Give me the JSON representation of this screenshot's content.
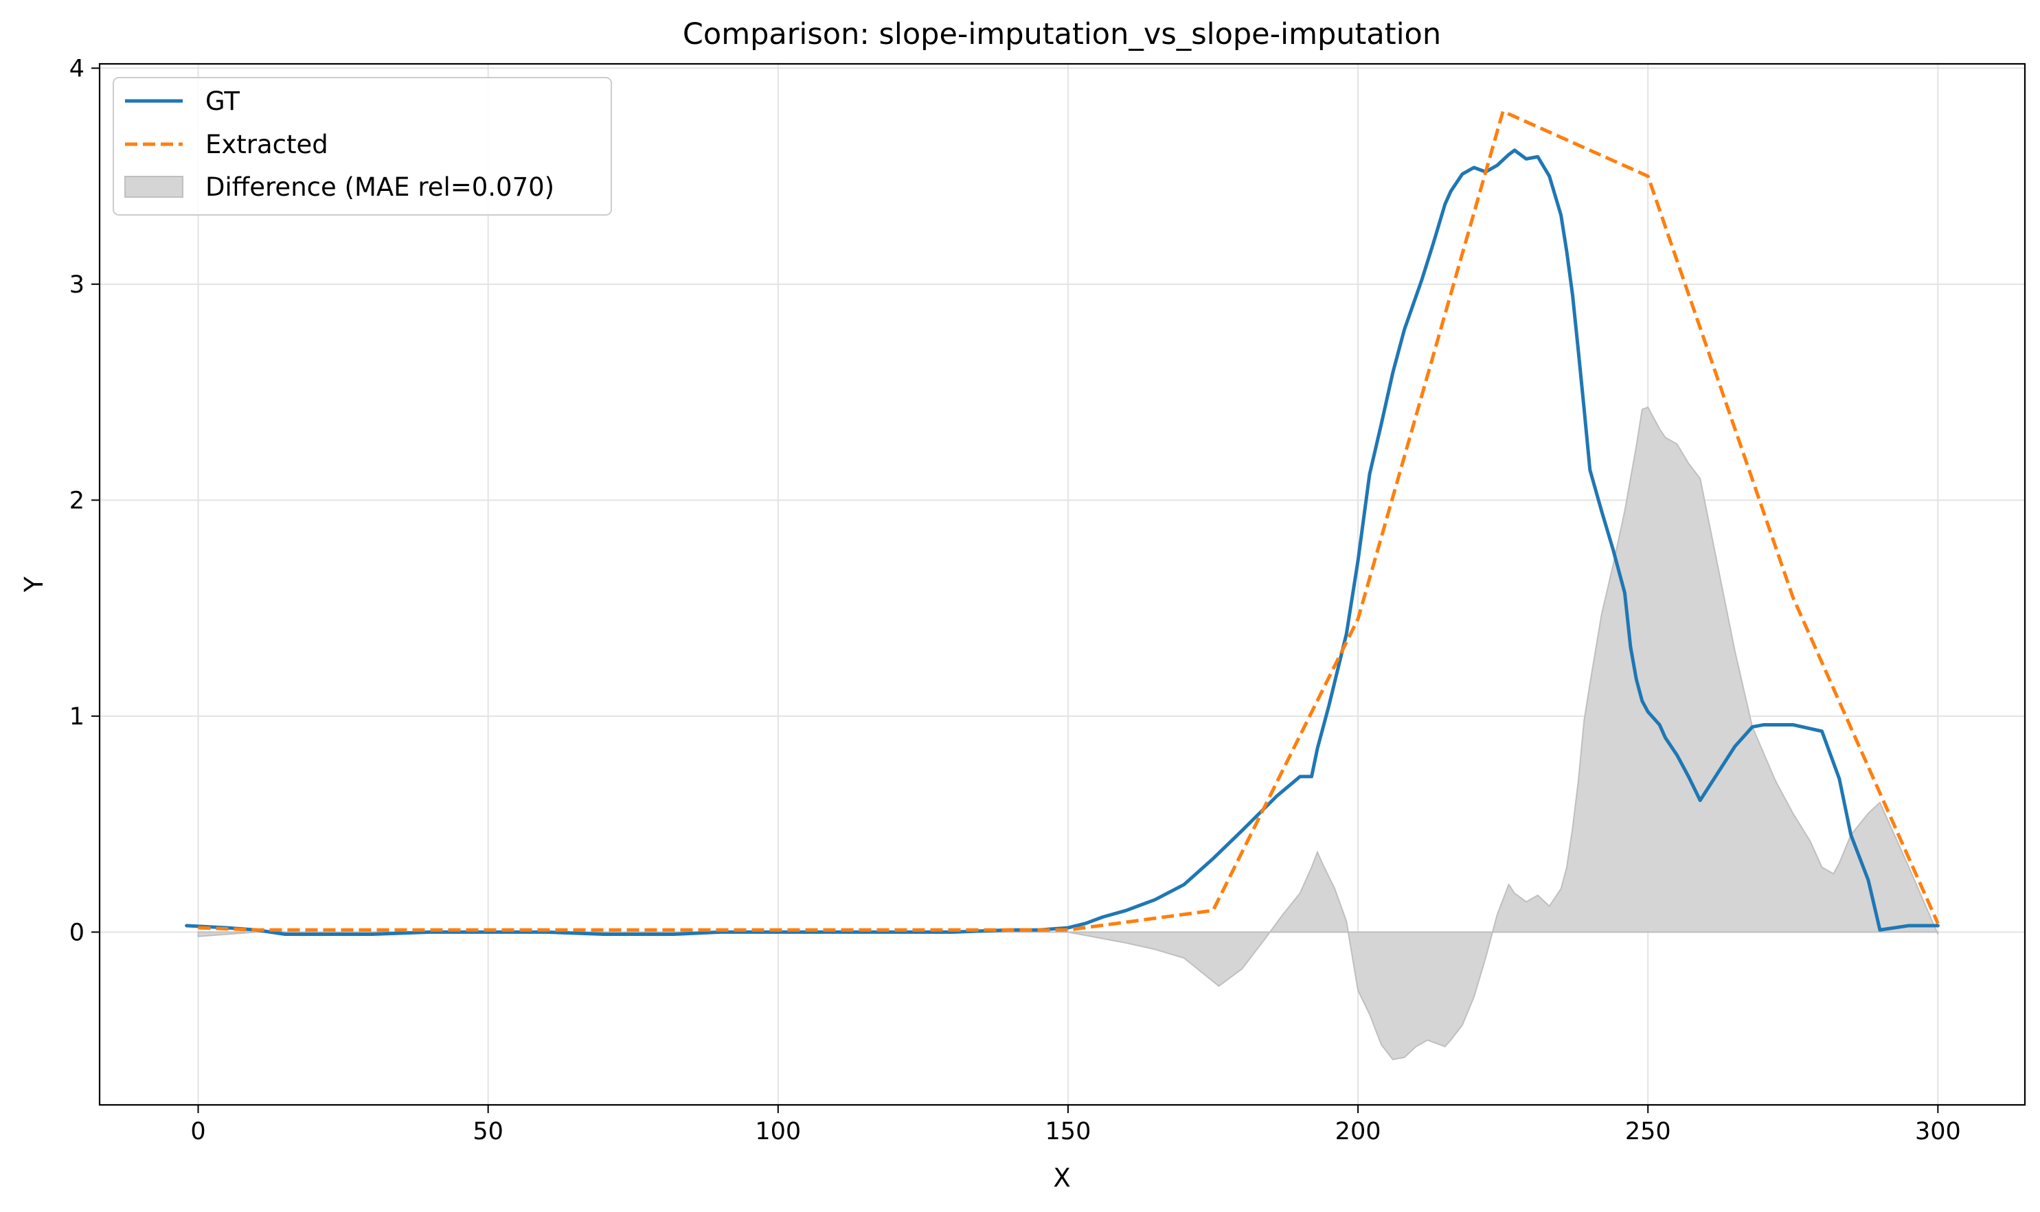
{
  "colors": {
    "gt": "#1f77b4",
    "extracted": "#ff7f0e",
    "difference_fill": "#d5d5d5",
    "difference_edge": "#bfbfbf",
    "grid": "#e3e3e3",
    "axis": "#000000"
  },
  "chart_data": {
    "type": "line",
    "title": "Comparison: slope-imputation_vs_slope-imputation",
    "xlabel": "X",
    "ylabel": "Y",
    "xlim": [
      -17,
      315
    ],
    "ylim": [
      -0.8,
      4.02
    ],
    "xticks": [
      0,
      50,
      100,
      150,
      200,
      250,
      300
    ],
    "yticks": [
      0,
      1,
      2,
      3,
      4
    ],
    "xtick_labels": [
      "0",
      "50",
      "100",
      "150",
      "200",
      "250",
      "300"
    ],
    "ytick_labels": [
      "0",
      "1",
      "2",
      "3",
      "4"
    ],
    "grid": true,
    "legend_position": "top-left",
    "legend": [
      "GT",
      "Extracted",
      "Difference (MAE rel=0.070)"
    ],
    "series": [
      {
        "name": "GT",
        "style": "solid",
        "x": [
          -2,
          5,
          10,
          15,
          20,
          30,
          40,
          50,
          60,
          70,
          82,
          90,
          100,
          110,
          120,
          130,
          140,
          145,
          150,
          153,
          156,
          160,
          165,
          170,
          175,
          180,
          183,
          186,
          190,
          192,
          193,
          195,
          198,
          200,
          202,
          204,
          206,
          208,
          211,
          213,
          214,
          215,
          216,
          218,
          220,
          222,
          224,
          226,
          227,
          229,
          231,
          233,
          235,
          236,
          237,
          238,
          239,
          240,
          242,
          244,
          246,
          247,
          248,
          249,
          250,
          252,
          253,
          255,
          257,
          259,
          265,
          268,
          270,
          275,
          280,
          283,
          285,
          288,
          290,
          295,
          300
        ],
        "y": [
          0.03,
          0.02,
          0.01,
          -0.01,
          -0.01,
          -0.01,
          0.0,
          0.0,
          0.0,
          -0.01,
          -0.01,
          0.0,
          0.0,
          0.0,
          0.0,
          0.0,
          0.01,
          0.01,
          0.02,
          0.04,
          0.07,
          0.1,
          0.15,
          0.22,
          0.34,
          0.47,
          0.55,
          0.63,
          0.72,
          0.72,
          0.85,
          1.05,
          1.38,
          1.72,
          2.12,
          2.35,
          2.59,
          2.79,
          3.02,
          3.19,
          3.28,
          3.37,
          3.43,
          3.51,
          3.54,
          3.52,
          3.55,
          3.6,
          3.62,
          3.58,
          3.59,
          3.5,
          3.32,
          3.15,
          2.95,
          2.69,
          2.42,
          2.14,
          1.95,
          1.77,
          1.57,
          1.32,
          1.17,
          1.07,
          1.02,
          0.96,
          0.9,
          0.82,
          0.72,
          0.61,
          0.86,
          0.95,
          0.96,
          0.96,
          0.93,
          0.71,
          0.45,
          0.24,
          0.01,
          0.03,
          0.03
        ]
      },
      {
        "name": "Extracted",
        "style": "dashed",
        "x": [
          0,
          10,
          50,
          100,
          150,
          175,
          200,
          225,
          250,
          275,
          300
        ],
        "y": [
          0.02,
          0.01,
          0.01,
          0.01,
          0.01,
          0.1,
          1.45,
          3.8,
          3.5,
          1.55,
          0.04
        ]
      },
      {
        "name": "Difference (MAE rel=0.070)",
        "style": "fill",
        "x": [
          0,
          10,
          50,
          100,
          150,
          160,
          165,
          170,
          176,
          180,
          184,
          187,
          190,
          192,
          193,
          194,
          196,
          198,
          200,
          202,
          204,
          206,
          208,
          210,
          212,
          214,
          215,
          216,
          218,
          220,
          222,
          224,
          226,
          227,
          229,
          231,
          233,
          235,
          236,
          237,
          238,
          239,
          240,
          242,
          244,
          246,
          248,
          249,
          250,
          252,
          253,
          255,
          257,
          259,
          262,
          265,
          268,
          272,
          275,
          278,
          280,
          282,
          283,
          285,
          288,
          290,
          295,
          300
        ],
        "y": [
          -0.02,
          0.0,
          0.0,
          0.0,
          0.0,
          -0.05,
          -0.08,
          -0.12,
          -0.25,
          -0.17,
          -0.03,
          0.08,
          0.18,
          0.3,
          0.37,
          0.31,
          0.2,
          0.05,
          -0.27,
          -0.38,
          -0.52,
          -0.59,
          -0.58,
          -0.53,
          -0.5,
          -0.52,
          -0.53,
          -0.5,
          -0.43,
          -0.3,
          -0.12,
          0.08,
          0.22,
          0.18,
          0.14,
          0.17,
          0.12,
          0.2,
          0.3,
          0.48,
          0.7,
          0.98,
          1.15,
          1.47,
          1.7,
          1.95,
          2.25,
          2.42,
          2.43,
          2.33,
          2.29,
          2.26,
          2.17,
          2.1,
          1.7,
          1.3,
          0.95,
          0.7,
          0.55,
          0.42,
          0.3,
          0.27,
          0.32,
          0.45,
          0.55,
          0.6,
          0.3,
          -0.01
        ]
      }
    ]
  }
}
